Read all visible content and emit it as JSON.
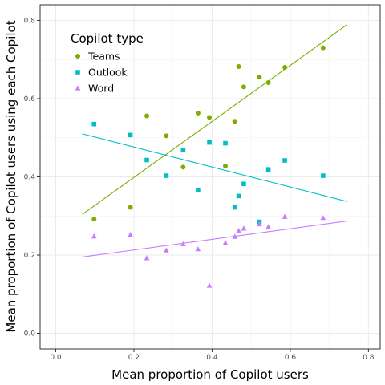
{
  "chart_data": {
    "type": "scatter",
    "xlabel": "Mean proportion of Copilot users",
    "ylabel": "Mean proportion of Copilot users using each Copilot",
    "xlim": [
      -0.04,
      0.83
    ],
    "ylim": [
      -0.04,
      0.84
    ],
    "x_ticks": [
      0.0,
      0.2,
      0.4,
      0.6,
      0.8
    ],
    "y_ticks": [
      0.0,
      0.2,
      0.4,
      0.6,
      0.8
    ],
    "x_tick_labels": [
      "0.0",
      "0.2",
      "0.4",
      "0.6",
      "0.8"
    ],
    "y_tick_labels": [
      "0.0",
      "0.2",
      "0.4",
      "0.6",
      "0.8"
    ],
    "grid": true,
    "legend": {
      "title": "Copilot type",
      "placement": "top-left"
    },
    "series": [
      {
        "name": "Teams",
        "color": "#7CAE00",
        "marker": "circle",
        "points": [
          [
            0.098,
            0.292
          ],
          [
            0.191,
            0.322
          ],
          [
            0.233,
            0.556
          ],
          [
            0.283,
            0.505
          ],
          [
            0.326,
            0.425
          ],
          [
            0.364,
            0.563
          ],
          [
            0.393,
            0.552
          ],
          [
            0.434,
            0.428
          ],
          [
            0.458,
            0.542
          ],
          [
            0.468,
            0.682
          ],
          [
            0.481,
            0.63
          ],
          [
            0.521,
            0.655
          ],
          [
            0.544,
            0.641
          ],
          [
            0.586,
            0.68
          ],
          [
            0.684,
            0.73
          ]
        ],
        "trend": [
          [
            0.068,
            0.304
          ],
          [
            0.745,
            0.789
          ]
        ]
      },
      {
        "name": "Outlook",
        "color": "#00BFC4",
        "marker": "square",
        "points": [
          [
            0.098,
            0.535
          ],
          [
            0.191,
            0.507
          ],
          [
            0.233,
            0.443
          ],
          [
            0.283,
            0.403
          ],
          [
            0.326,
            0.468
          ],
          [
            0.364,
            0.366
          ],
          [
            0.393,
            0.488
          ],
          [
            0.434,
            0.486
          ],
          [
            0.458,
            0.322
          ],
          [
            0.468,
            0.351
          ],
          [
            0.481,
            0.382
          ],
          [
            0.521,
            0.285
          ],
          [
            0.544,
            0.419
          ],
          [
            0.586,
            0.442
          ],
          [
            0.684,
            0.403
          ]
        ],
        "trend": [
          [
            0.068,
            0.51
          ],
          [
            0.745,
            0.337
          ]
        ]
      },
      {
        "name": "Word",
        "color": "#C77CFF",
        "marker": "triangle",
        "points": [
          [
            0.098,
            0.248
          ],
          [
            0.191,
            0.252
          ],
          [
            0.233,
            0.192
          ],
          [
            0.283,
            0.212
          ],
          [
            0.326,
            0.228
          ],
          [
            0.364,
            0.215
          ],
          [
            0.393,
            0.122
          ],
          [
            0.434,
            0.231
          ],
          [
            0.458,
            0.247
          ],
          [
            0.468,
            0.262
          ],
          [
            0.481,
            0.268
          ],
          [
            0.521,
            0.279
          ],
          [
            0.544,
            0.272
          ],
          [
            0.586,
            0.298
          ],
          [
            0.684,
            0.295
          ]
        ],
        "trend": [
          [
            0.068,
            0.195
          ],
          [
            0.745,
            0.287
          ]
        ]
      }
    ]
  }
}
